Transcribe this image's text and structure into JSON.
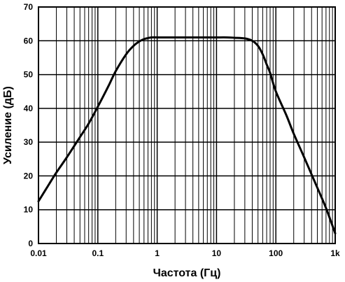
{
  "chart_data": {
    "type": "line",
    "xlabel": "Частота (Гц)",
    "ylabel": "Усиление (дБ)",
    "x_scale": "log",
    "xlim": [
      0.01,
      1000
    ],
    "ylim": [
      0,
      70
    ],
    "x_tick_values": [
      0.01,
      0.1,
      1,
      10,
      100,
      1000
    ],
    "x_tick_labels": [
      "0.01",
      "0.1",
      "1",
      "10",
      "100",
      "1k"
    ],
    "y_ticks": [
      0,
      10,
      20,
      30,
      40,
      50,
      60,
      70
    ],
    "grid": true,
    "line_color": "#000000",
    "series": [
      {
        "x": [
          0.01,
          0.015,
          0.02,
          0.03,
          0.05,
          0.07,
          0.1,
          0.15,
          0.2,
          0.3,
          0.4,
          0.5,
          0.6,
          0.7,
          0.8,
          1,
          1.5,
          2,
          3,
          5,
          7,
          10,
          15,
          20,
          30,
          40,
          50,
          60,
          70,
          80,
          100,
          150,
          200,
          300,
          500,
          700,
          1000
        ],
        "y": [
          12.5,
          17.5,
          21,
          25.5,
          31.5,
          35.5,
          40.5,
          46.5,
          51,
          56,
          58.5,
          59.8,
          60.5,
          60.8,
          61,
          61,
          61,
          61,
          61,
          61,
          61,
          61,
          61,
          60.9,
          60.7,
          60,
          58.5,
          56,
          53,
          50.5,
          45,
          38,
          32.5,
          25.5,
          16.5,
          10.5,
          3
        ]
      }
    ]
  }
}
